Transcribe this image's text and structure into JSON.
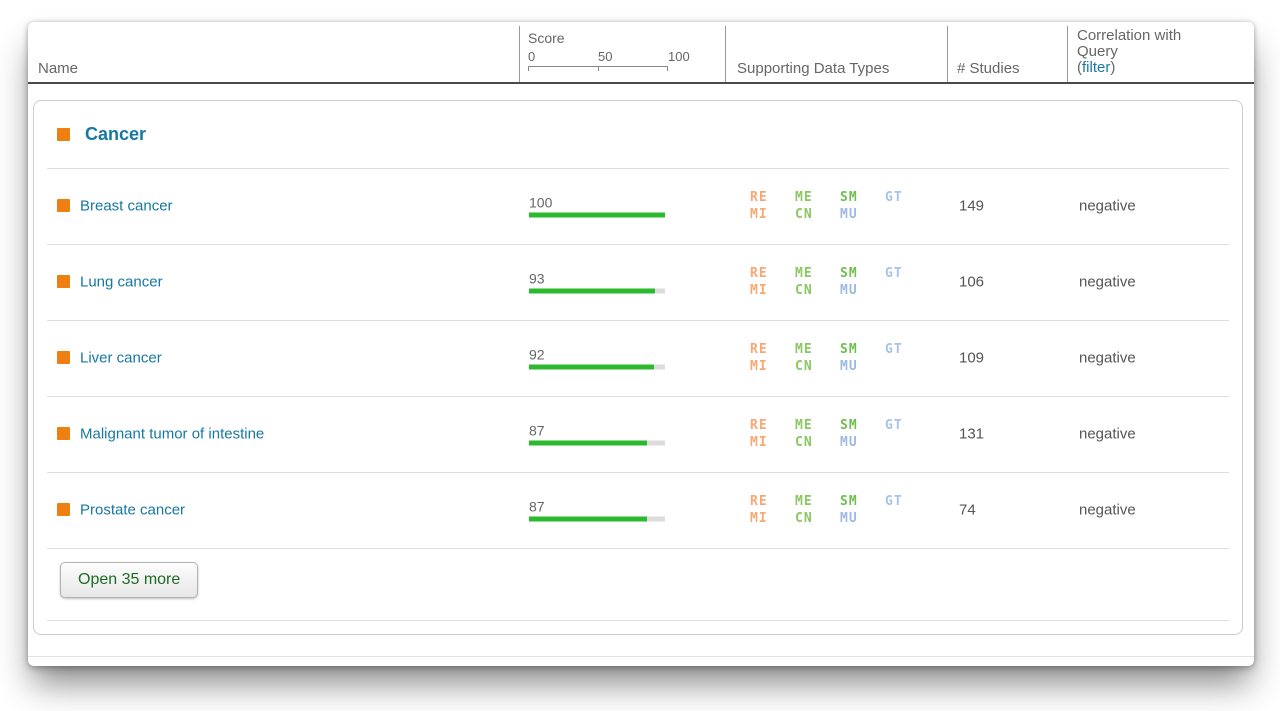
{
  "table": {
    "columns": {
      "name_label": "Name",
      "score_label": "Score",
      "score_ticks": [
        "0",
        "50",
        "100"
      ],
      "data_types_label": "Supporting Data Types",
      "studies_label": "# Studies",
      "correlation_label_line1": "Correlation with",
      "correlation_label_line2": "Query",
      "correlation_filter_open": "(",
      "correlation_filter_link": "filter",
      "correlation_filter_close": ")"
    }
  },
  "group": {
    "title": "Cancer",
    "open_more_label": "Open 35 more"
  },
  "rows": [
    {
      "name": "Breast cancer",
      "score": 100,
      "data_types": [
        "RE",
        "ME",
        "SM",
        "GT",
        "MI",
        "CN",
        "MU"
      ],
      "studies": "149",
      "correlation": "negative"
    },
    {
      "name": "Lung cancer",
      "score": 93,
      "data_types": [
        "RE",
        "ME",
        "SM",
        "GT",
        "MI",
        "CN",
        "MU"
      ],
      "studies": "106",
      "correlation": "negative"
    },
    {
      "name": "Liver cancer",
      "score": 92,
      "data_types": [
        "RE",
        "ME",
        "SM",
        "GT",
        "MI",
        "CN",
        "MU"
      ],
      "studies": "109",
      "correlation": "negative"
    },
    {
      "name": "Malignant tumor of intestine",
      "score": 87,
      "data_types": [
        "RE",
        "ME",
        "SM",
        "GT",
        "MI",
        "CN",
        "MU"
      ],
      "studies": "131",
      "correlation": "negative"
    },
    {
      "name": "Prostate cancer",
      "score": 87,
      "data_types": [
        "RE",
        "ME",
        "SM",
        "GT",
        "MI",
        "CN",
        "MU"
      ],
      "studies": "74",
      "correlation": "negative"
    }
  ],
  "badge_colors": {
    "RE": "#f9a873",
    "MI": "#f9a873",
    "ME": "#8bc763",
    "CN": "#8bc763",
    "SM": "#6fbe4f",
    "GT": "#a9c2e8",
    "MU": "#9eb9e2"
  },
  "colors": {
    "accent_teal": "#1778a3",
    "accent_orange": "#ee7f10",
    "bar_green": "#2db92d",
    "button_text_green": "#1d6b24"
  }
}
